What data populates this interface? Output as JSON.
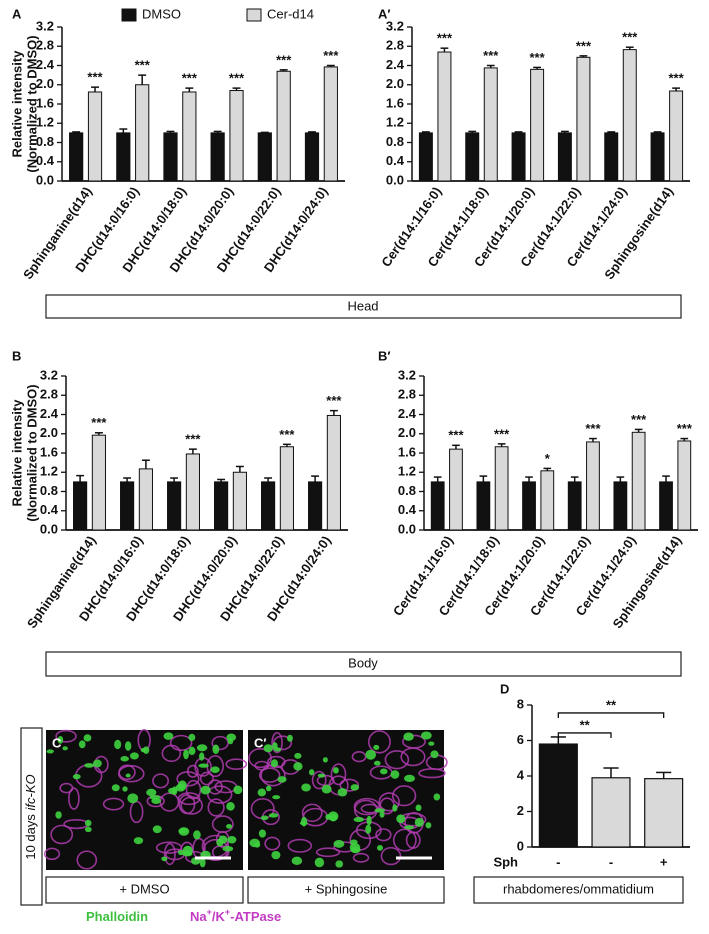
{
  "chart_data": [
    {
      "type": "grouped-bar",
      "panel": "A",
      "ylabel": [
        "Relative intensity",
        "(Normalized to DMSO)"
      ],
      "categories": [
        "Sphinganine(d14)",
        "DHC(d14:0/16:0)",
        "DHC(d14:0/18:0)",
        "DHC(d14:0/20:0)",
        "DHC(d14:0/22:0)",
        "DHC(d14:0/24:0)"
      ],
      "series": [
        {
          "name": "DMSO",
          "color": "#111111",
          "values": [
            1.0,
            1.0,
            1.0,
            1.0,
            1.0,
            1.0
          ],
          "errors": [
            0.02,
            0.08,
            0.03,
            0.03,
            0.01,
            0.02
          ]
        },
        {
          "name": "Cer-d14",
          "color": "#d9d9d9",
          "values": [
            1.85,
            2.0,
            1.85,
            1.88,
            2.28,
            2.37
          ],
          "errors": [
            0.1,
            0.2,
            0.08,
            0.05,
            0.03,
            0.03
          ],
          "significance": [
            "***",
            "***",
            "***",
            "***",
            "***",
            "***"
          ]
        }
      ],
      "ylim": [
        0,
        3.2
      ],
      "yticks": [
        {
          "value": 0,
          "label": "0.0"
        },
        0.4,
        0.8,
        1.2,
        1.6,
        {
          "value": 2,
          "label": "2.0"
        },
        2.4,
        2.8,
        3.2
      ]
    },
    {
      "type": "grouped-bar",
      "panel": "A′",
      "categories": [
        "Cer(d14:1/16:0)",
        "Cer(d14:1/18:0)",
        "Cer(d14:1/20:0)",
        "Cer(d14:1/22:0)",
        "Cer(d14:1/24:0)",
        "Sphingosine(d14)"
      ],
      "series": [
        {
          "color": "#111111",
          "values": [
            1.0,
            1.0,
            1.0,
            1.0,
            1.0,
            1.0
          ],
          "errors": [
            0.02,
            0.03,
            0.02,
            0.03,
            0.02,
            0.02
          ]
        },
        {
          "color": "#d9d9d9",
          "values": [
            2.68,
            2.35,
            2.32,
            2.57,
            2.73,
            1.87
          ],
          "errors": [
            0.08,
            0.05,
            0.04,
            0.03,
            0.05,
            0.06
          ],
          "significance": [
            "***",
            "***",
            "***",
            "***",
            "***",
            "***"
          ]
        }
      ],
      "ylim": [
        0,
        3.2
      ],
      "yticks": [
        {
          "value": 0,
          "label": "0.0"
        },
        0.4,
        0.8,
        1.2,
        1.6,
        {
          "value": 2,
          "label": "2.0"
        },
        2.4,
        2.8,
        3.2
      ]
    },
    {
      "type": "grouped-bar",
      "panel": "B",
      "ylabel": [
        "Relative intensity",
        "(Normalized to DMSO)"
      ],
      "categories": [
        "Sphinganine(d14)",
        "DHC(d14:0/16:0)",
        "DHC(d14:0/18:0)",
        "DHC(d14:0/20:0)",
        "DHC(d14:0/22:0)",
        "DHC(d14:0/24:0)"
      ],
      "series": [
        {
          "color": "#111111",
          "values": [
            1.0,
            1.0,
            1.0,
            1.0,
            1.0,
            1.0
          ],
          "errors": [
            0.13,
            0.08,
            0.08,
            0.05,
            0.08,
            0.12
          ]
        },
        {
          "color": "#d9d9d9",
          "values": [
            1.97,
            1.27,
            1.58,
            1.2,
            1.73,
            2.38
          ],
          "errors": [
            0.05,
            0.18,
            0.1,
            0.12,
            0.05,
            0.1
          ],
          "significance": [
            "***",
            null,
            "***",
            null,
            "***",
            "***"
          ]
        }
      ],
      "ylim": [
        0,
        3.2
      ],
      "yticks": [
        {
          "value": 0,
          "label": "0.0"
        },
        0.4,
        0.8,
        1.2,
        1.6,
        {
          "value": 2,
          "label": "2.0"
        },
        2.4,
        2.8,
        3.2
      ]
    },
    {
      "type": "grouped-bar",
      "panel": "B′",
      "categories": [
        "Cer(d14:1/16:0)",
        "Cer(d14:1/18:0)",
        "Cer(d14:1/20:0)",
        "Cer(d14:1/22:0)",
        "Cer(d14:1/24:0)",
        "Sphingosine(d14)"
      ],
      "series": [
        {
          "color": "#111111",
          "values": [
            1.0,
            1.0,
            1.0,
            1.0,
            1.0,
            1.0
          ],
          "errors": [
            0.1,
            0.12,
            0.1,
            0.1,
            0.1,
            0.12
          ]
        },
        {
          "color": "#d9d9d9",
          "values": [
            1.68,
            1.73,
            1.23,
            1.83,
            2.03,
            1.85
          ],
          "errors": [
            0.08,
            0.06,
            0.05,
            0.07,
            0.06,
            0.05
          ],
          "significance": [
            "***",
            "***",
            "*",
            "***",
            "***",
            "***"
          ]
        }
      ],
      "ylim": [
        0,
        3.2
      ],
      "yticks": [
        {
          "value": 0,
          "label": "0.0"
        },
        0.4,
        0.8,
        1.2,
        1.6,
        {
          "value": 2,
          "label": "2.0"
        },
        2.4,
        2.8,
        3.2
      ]
    },
    {
      "type": "bar",
      "panel": "D",
      "row_label": "Sph",
      "categories": [
        "-",
        "-",
        "+"
      ],
      "values": [
        5.8,
        3.9,
        3.85
      ],
      "errors": [
        0.4,
        0.55,
        0.35
      ],
      "colors": [
        "#111111",
        "#d9d9d9",
        "#d9d9d9"
      ],
      "comparisons": [
        {
          "from": 0,
          "to": 1,
          "label": "**"
        },
        {
          "from": 0,
          "to": 2,
          "label": "**"
        }
      ],
      "box_label": "rhabdomeres/ommatidium",
      "ylim": [
        0,
        8
      ],
      "yticks": [
        0,
        2,
        4,
        6,
        8
      ]
    }
  ],
  "figure": {
    "groups": [
      "Head",
      "Body"
    ],
    "images": [
      {
        "panel": "C",
        "caption": "+ DMSO"
      },
      {
        "panel": "C′",
        "caption": "+ Sphingosine"
      }
    ],
    "side_label": [
      "10 days ",
      "ifc-KO"
    ],
    "stains": [
      {
        "color": "#3fbf3f",
        "parts": [
          {
            "text": "Phalloidin"
          }
        ]
      },
      {
        "color": "#c23cc2",
        "parts": [
          {
            "text": "Na"
          },
          {
            "text": "+",
            "sup": true
          },
          {
            "text": "/K"
          },
          {
            "text": "+",
            "sup": true
          },
          {
            "text": "-ATPase"
          }
        ]
      }
    ]
  }
}
